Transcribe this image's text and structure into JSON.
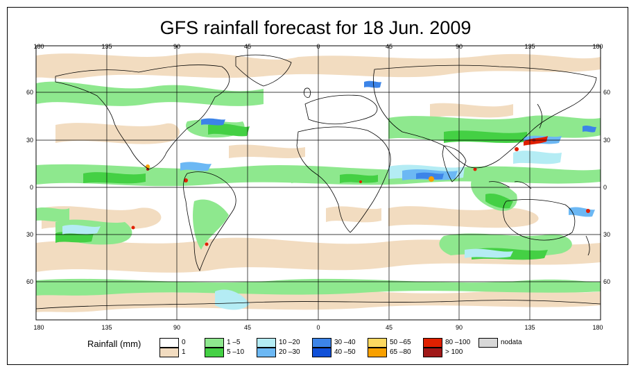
{
  "title": "GFS rainfall forecast for 18 Jun. 2009",
  "axes": {
    "longitude_labels": [
      "180",
      "135",
      "90",
      "45",
      "0",
      "45",
      "90",
      "135",
      "180"
    ],
    "latitude_labels": [
      "60",
      "30",
      "0",
      "30",
      "60"
    ]
  },
  "legend": {
    "label": "Rainfall (mm)",
    "items": [
      {
        "label": "0",
        "color": "#ffffff"
      },
      {
        "label": "1",
        "color": "#f2dcc0"
      },
      {
        "label": "1 –5",
        "color": "#8ee88e"
      },
      {
        "label": "5 –10",
        "color": "#44d044"
      },
      {
        "label": "10 –20",
        "color": "#b4ecf4"
      },
      {
        "label": "20 –30",
        "color": "#6cb8f4"
      },
      {
        "label": "30 –40",
        "color": "#3c84e8"
      },
      {
        "label": "40 –50",
        "color": "#1050d8"
      },
      {
        "label": "50 –65",
        "color": "#fcd860"
      },
      {
        "label": "65 –80",
        "color": "#f8a000"
      },
      {
        "label": "80 –100",
        "color": "#e02000"
      },
      {
        "label": "> 100",
        "color": "#a01818"
      },
      {
        "label": "nodata",
        "color": "#d8d8d8"
      }
    ]
  },
  "map_colors": {
    "ocean": "#ffffff",
    "gridline": "#000000",
    "coastline": "#000000"
  }
}
